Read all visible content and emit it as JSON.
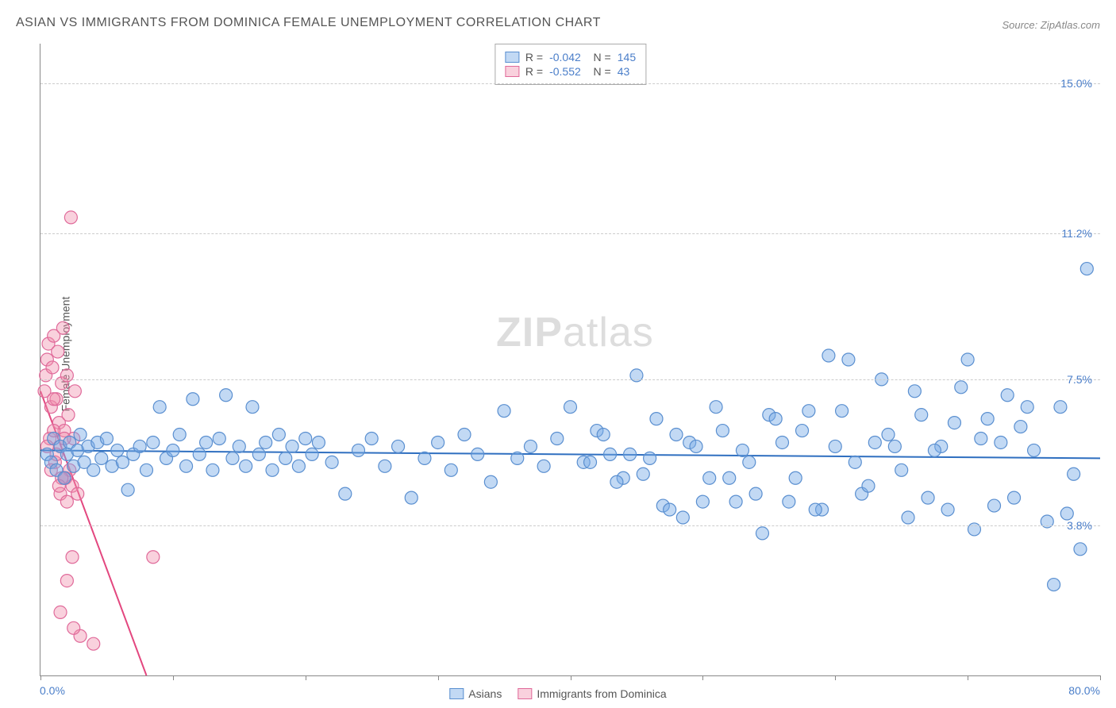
{
  "title": "ASIAN VS IMMIGRANTS FROM DOMINICA FEMALE UNEMPLOYMENT CORRELATION CHART",
  "source_prefix": "Source: ",
  "source_name": "ZipAtlas.com",
  "ylabel": "Female Unemployment",
  "watermark": "ZIPatlas",
  "chart": {
    "type": "scatter",
    "background_color": "#ffffff",
    "grid_color": "#cccccc",
    "axis_color": "#888888",
    "text_color": "#555555",
    "value_color": "#4a7ec9",
    "xlim": [
      0,
      80
    ],
    "ylim": [
      0,
      16
    ],
    "xticks": [
      0,
      10,
      20,
      30,
      40,
      50,
      60,
      70,
      80
    ],
    "yticks": [
      {
        "v": 3.8,
        "label": "3.8%"
      },
      {
        "v": 7.5,
        "label": "7.5%"
      },
      {
        "v": 11.2,
        "label": "11.2%"
      },
      {
        "v": 15.0,
        "label": "15.0%"
      }
    ],
    "x_axis_labels": {
      "start": "0.0%",
      "end": "80.0%"
    },
    "marker_radius": 8,
    "marker_stroke_width": 1.2,
    "line_width": 2,
    "title_fontsize": 16,
    "label_fontsize": 14
  },
  "series": [
    {
      "name": "Asians",
      "fill": "rgba(120,170,230,0.45)",
      "stroke": "#5a8fd0",
      "line_color": "#2f6fc0",
      "R": "-0.042",
      "N": "145",
      "regression": {
        "x1": 0,
        "y1": 5.7,
        "x2": 80,
        "y2": 5.5
      },
      "points": [
        [
          0.5,
          5.6
        ],
        [
          0.8,
          5.4
        ],
        [
          1.0,
          6.0
        ],
        [
          1.2,
          5.2
        ],
        [
          1.5,
          5.8
        ],
        [
          1.8,
          5.0
        ],
        [
          2.0,
          5.6
        ],
        [
          2.2,
          5.9
        ],
        [
          2.5,
          5.3
        ],
        [
          2.8,
          5.7
        ],
        [
          3.0,
          6.1
        ],
        [
          3.3,
          5.4
        ],
        [
          3.6,
          5.8
        ],
        [
          4.0,
          5.2
        ],
        [
          4.3,
          5.9
        ],
        [
          4.6,
          5.5
        ],
        [
          5.0,
          6.0
        ],
        [
          5.4,
          5.3
        ],
        [
          5.8,
          5.7
        ],
        [
          6.2,
          5.4
        ],
        [
          6.6,
          4.7
        ],
        [
          7.0,
          5.6
        ],
        [
          7.5,
          5.8
        ],
        [
          8.0,
          5.2
        ],
        [
          8.5,
          5.9
        ],
        [
          9.0,
          6.8
        ],
        [
          9.5,
          5.5
        ],
        [
          10.0,
          5.7
        ],
        [
          10.5,
          6.1
        ],
        [
          11.0,
          5.3
        ],
        [
          11.5,
          7.0
        ],
        [
          12.0,
          5.6
        ],
        [
          12.5,
          5.9
        ],
        [
          13.0,
          5.2
        ],
        [
          13.5,
          6.0
        ],
        [
          14.0,
          7.1
        ],
        [
          14.5,
          5.5
        ],
        [
          15.0,
          5.8
        ],
        [
          15.5,
          5.3
        ],
        [
          16.0,
          6.8
        ],
        [
          16.5,
          5.6
        ],
        [
          17.0,
          5.9
        ],
        [
          17.5,
          5.2
        ],
        [
          18.0,
          6.1
        ],
        [
          18.5,
          5.5
        ],
        [
          19.0,
          5.8
        ],
        [
          19.5,
          5.3
        ],
        [
          20.0,
          6.0
        ],
        [
          20.5,
          5.6
        ],
        [
          21.0,
          5.9
        ],
        [
          22.0,
          5.4
        ],
        [
          23.0,
          4.6
        ],
        [
          24.0,
          5.7
        ],
        [
          25.0,
          6.0
        ],
        [
          26.0,
          5.3
        ],
        [
          27.0,
          5.8
        ],
        [
          28.0,
          4.5
        ],
        [
          29.0,
          5.5
        ],
        [
          30.0,
          5.9
        ],
        [
          31.0,
          5.2
        ],
        [
          32.0,
          6.1
        ],
        [
          33.0,
          5.6
        ],
        [
          34.0,
          4.9
        ],
        [
          35.0,
          6.7
        ],
        [
          36.0,
          5.5
        ],
        [
          37.0,
          5.8
        ],
        [
          38.0,
          5.3
        ],
        [
          39.0,
          6.0
        ],
        [
          40.0,
          6.8
        ],
        [
          41.0,
          5.4
        ],
        [
          42.0,
          6.2
        ],
        [
          43.0,
          5.6
        ],
        [
          44.0,
          5.0
        ],
        [
          45.0,
          7.6
        ],
        [
          46.0,
          5.5
        ],
        [
          47.0,
          4.3
        ],
        [
          48.0,
          6.1
        ],
        [
          49.0,
          5.9
        ],
        [
          50.0,
          4.4
        ],
        [
          51.0,
          6.8
        ],
        [
          52.0,
          5.0
        ],
        [
          53.0,
          5.7
        ],
        [
          54.0,
          4.6
        ],
        [
          55.0,
          6.6
        ],
        [
          56.0,
          5.9
        ],
        [
          57.0,
          5.0
        ],
        [
          58.0,
          6.7
        ],
        [
          59.0,
          4.2
        ],
        [
          60.0,
          5.8
        ],
        [
          61.0,
          8.0
        ],
        [
          62.0,
          4.6
        ],
        [
          63.0,
          5.9
        ],
        [
          64.0,
          6.1
        ],
        [
          65.0,
          5.2
        ],
        [
          66.0,
          7.2
        ],
        [
          67.0,
          4.5
        ],
        [
          68.0,
          5.8
        ],
        [
          69.0,
          6.4
        ],
        [
          70.0,
          8.0
        ],
        [
          71.0,
          6.0
        ],
        [
          72.0,
          4.3
        ],
        [
          73.0,
          7.1
        ],
        [
          74.0,
          6.3
        ],
        [
          75.0,
          5.7
        ],
        [
          76.0,
          3.9
        ],
        [
          77.0,
          6.8
        ],
        [
          78.0,
          5.1
        ],
        [
          79.0,
          10.3
        ],
        [
          78.5,
          3.2
        ],
        [
          77.5,
          4.1
        ],
        [
          76.5,
          2.3
        ],
        [
          74.5,
          6.8
        ],
        [
          73.5,
          4.5
        ],
        [
          72.5,
          5.9
        ],
        [
          71.5,
          6.5
        ],
        [
          70.5,
          3.7
        ],
        [
          69.5,
          7.3
        ],
        [
          68.5,
          4.2
        ],
        [
          67.5,
          5.7
        ],
        [
          66.5,
          6.6
        ],
        [
          65.5,
          4.0
        ],
        [
          64.5,
          5.8
        ],
        [
          63.5,
          7.5
        ],
        [
          62.5,
          4.8
        ],
        [
          61.5,
          5.4
        ],
        [
          60.5,
          6.7
        ],
        [
          59.5,
          8.1
        ],
        [
          58.5,
          4.2
        ],
        [
          57.5,
          6.2
        ],
        [
          56.5,
          4.4
        ],
        [
          55.5,
          6.5
        ],
        [
          54.5,
          3.6
        ],
        [
          53.5,
          5.4
        ],
        [
          52.5,
          4.4
        ],
        [
          51.5,
          6.2
        ],
        [
          50.5,
          5.0
        ],
        [
          49.5,
          5.8
        ],
        [
          48.5,
          4.0
        ],
        [
          47.5,
          4.2
        ],
        [
          46.5,
          6.5
        ],
        [
          45.5,
          5.1
        ],
        [
          44.5,
          5.6
        ],
        [
          43.5,
          4.9
        ],
        [
          42.5,
          6.1
        ],
        [
          41.5,
          5.4
        ]
      ]
    },
    {
      "name": "Immigrants from Dominica",
      "fill": "rgba(240,140,170,0.4)",
      "stroke": "#e06a9a",
      "line_color": "#e3477f",
      "R": "-0.552",
      "N": "43",
      "regression": {
        "x1": 0,
        "y1": 7.2,
        "x2": 8,
        "y2": 0
      },
      "points": [
        [
          0.3,
          7.2
        ],
        [
          0.4,
          7.6
        ],
        [
          0.5,
          8.0
        ],
        [
          0.6,
          8.4
        ],
        [
          0.7,
          6.0
        ],
        [
          0.8,
          6.8
        ],
        [
          0.9,
          7.8
        ],
        [
          1.0,
          8.6
        ],
        [
          1.1,
          5.4
        ],
        [
          1.2,
          7.0
        ],
        [
          1.3,
          8.2
        ],
        [
          1.4,
          6.4
        ],
        [
          1.5,
          5.8
        ],
        [
          1.6,
          7.4
        ],
        [
          1.7,
          8.8
        ],
        [
          1.8,
          6.2
        ],
        [
          1.9,
          5.0
        ],
        [
          2.0,
          7.6
        ],
        [
          2.1,
          6.6
        ],
        [
          2.2,
          5.2
        ],
        [
          2.3,
          11.6
        ],
        [
          2.4,
          4.8
        ],
        [
          2.5,
          6.0
        ],
        [
          2.6,
          7.2
        ],
        [
          2.8,
          4.6
        ],
        [
          1.5,
          1.6
        ],
        [
          2.0,
          2.4
        ],
        [
          3.0,
          1.0
        ],
        [
          4.0,
          0.8
        ],
        [
          2.5,
          1.2
        ],
        [
          1.5,
          4.6
        ],
        [
          1.8,
          5.0
        ],
        [
          0.5,
          5.8
        ],
        [
          0.8,
          5.2
        ],
        [
          1.2,
          5.6
        ],
        [
          1.0,
          6.2
        ],
        [
          1.6,
          5.0
        ],
        [
          2.0,
          4.4
        ],
        [
          2.4,
          3.0
        ],
        [
          1.8,
          6.0
        ],
        [
          1.4,
          4.8
        ],
        [
          1.0,
          7.0
        ],
        [
          8.5,
          3.0
        ]
      ]
    }
  ],
  "legend_labels": [
    "Asians",
    "Immigrants from Dominica"
  ]
}
